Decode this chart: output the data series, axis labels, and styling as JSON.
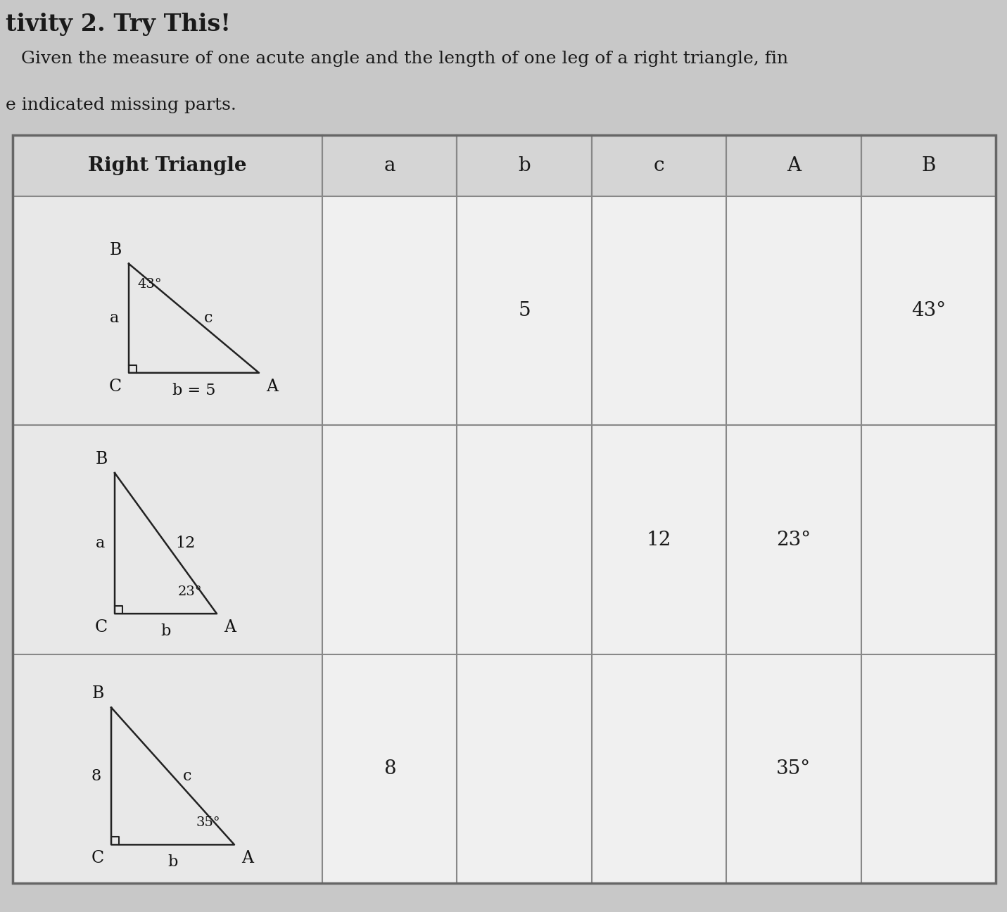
{
  "title_line1": "tivity 2. Try This!",
  "title_line2": "    Given the measure of one acute angle and the length of one leg of a right triangle, fin",
  "title_line3": "e indicated missing parts.",
  "header": [
    "Right Triangle",
    "a",
    "b",
    "c",
    "A",
    "B"
  ],
  "col_props": [
    0.315,
    0.137,
    0.137,
    0.137,
    0.137,
    0.137
  ],
  "row1_cells": [
    "",
    "",
    "5",
    "",
    "",
    "43°"
  ],
  "row2_cells": [
    "",
    "",
    "",
    "12",
    "23°",
    ""
  ],
  "row3_cells": [
    "",
    "8",
    "",
    "",
    "35°",
    ""
  ],
  "bg_color": "#c8c8c8",
  "table_bg": "#e2e2e2",
  "cell_bg_col0": "#e8e8e8",
  "cell_bg_other": "#f0f0f0",
  "header_bg": "#d5d5d5",
  "text_color": "#1a1a1a",
  "grid_color": "#888888"
}
